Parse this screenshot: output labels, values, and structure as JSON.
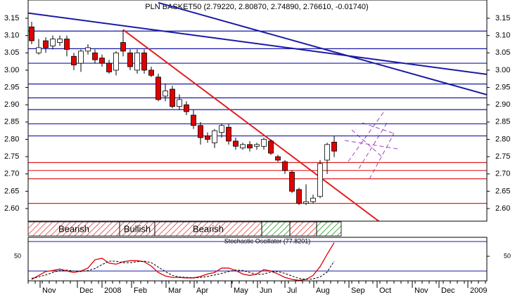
{
  "chart_data": [
    {
      "type": "candlestick",
      "title": "PLN BASKET50 (2.79220, 2.80870, 2.74890, 2.76610, -0.01740)",
      "x": [
        0.5,
        1.5,
        2.5,
        3.5,
        4.5,
        5.5,
        6.5,
        7.5,
        8.5,
        9.5,
        10.5,
        11.5,
        12.5,
        13.5,
        14.5,
        15.5,
        16.5,
        17.5,
        18.5,
        19.5,
        20.5,
        21.5,
        22.5,
        23.5,
        24.5,
        25.5,
        26.5,
        27.5,
        28.5,
        29.5,
        30.5,
        31.5,
        32.5,
        33.5,
        34.5,
        35.5,
        36.5,
        37.5,
        38.5,
        39.5,
        40.5,
        41.5,
        42.5,
        43.5
      ],
      "open": [
        3.125,
        3.05,
        3.085,
        3.07,
        3.08,
        3.09,
        3.04,
        3.02,
        3.055,
        3.05,
        3.035,
        3.02,
        3.0,
        3.08,
        3.05,
        3.0,
        3.05,
        3.0,
        2.98,
        2.925,
        2.945,
        2.895,
        2.9,
        2.87,
        2.84,
        2.81,
        2.79,
        2.82,
        2.835,
        2.795,
        2.775,
        2.785,
        2.78,
        2.78,
        2.795,
        2.75,
        2.735,
        2.705,
        2.655,
        2.615,
        2.62,
        2.635,
        2.74,
        2.792
      ],
      "high": [
        3.14,
        3.09,
        3.095,
        3.1,
        3.1,
        3.1,
        3.05,
        3.06,
        3.075,
        3.06,
        3.045,
        3.03,
        3.055,
        3.115,
        3.06,
        3.06,
        3.06,
        3.01,
        2.99,
        2.96,
        2.955,
        2.93,
        2.91,
        2.885,
        2.85,
        2.82,
        2.83,
        2.845,
        2.845,
        2.805,
        2.79,
        2.795,
        2.79,
        2.805,
        2.8,
        2.755,
        2.74,
        2.71,
        2.66,
        2.67,
        2.64,
        2.74,
        2.79,
        2.809
      ],
      "low": [
        3.075,
        3.045,
        3.05,
        3.06,
        3.07,
        3.04,
        3.0,
        2.995,
        3.045,
        3.02,
        3.01,
        2.99,
        2.985,
        3.04,
        3.0,
        2.99,
        2.99,
        2.98,
        2.91,
        2.91,
        2.89,
        2.885,
        2.87,
        2.83,
        2.785,
        2.79,
        2.775,
        2.805,
        2.785,
        2.77,
        2.77,
        2.765,
        2.77,
        2.77,
        2.755,
        2.735,
        2.7,
        2.645,
        2.61,
        2.61,
        2.615,
        2.63,
        2.7,
        2.749
      ],
      "close": [
        3.085,
        3.065,
        3.065,
        3.09,
        3.09,
        3.06,
        3.015,
        3.055,
        3.065,
        3.03,
        3.02,
        2.995,
        3.05,
        3.055,
        3.01,
        3.05,
        3.0,
        2.985,
        2.915,
        2.94,
        2.895,
        2.915,
        2.88,
        2.84,
        2.805,
        2.8,
        2.825,
        2.84,
        2.795,
        2.78,
        2.785,
        2.775,
        2.785,
        2.8,
        2.76,
        2.74,
        2.71,
        2.65,
        2.615,
        2.62,
        2.63,
        2.73,
        2.785,
        2.766
      ],
      "up_color": "#ffffff",
      "down_color": "#e00000",
      "xlim": [
        0,
        65.2
      ],
      "xticks": [
        {
          "value": 1.7,
          "label": "Nov"
        },
        {
          "value": 7,
          "label": "Dec"
        },
        {
          "value": 10.5,
          "label": "2008"
        },
        {
          "value": 14.7,
          "label": "Feb"
        },
        {
          "value": 19.6,
          "label": "Mar"
        },
        {
          "value": 23.6,
          "label": "Apr"
        },
        {
          "value": 28.9,
          "label": "May"
        },
        {
          "value": 32.6,
          "label": "Jun"
        },
        {
          "value": 36.5,
          "label": "Jul"
        },
        {
          "value": 40.6,
          "label": "Aug"
        },
        {
          "value": 45.6,
          "label": "Sep"
        },
        {
          "value": 49.6,
          "label": "Oct"
        },
        {
          "value": 54.6,
          "label": "Nov"
        },
        {
          "value": 58.4,
          "label": "Dec"
        },
        {
          "value": 62.5,
          "label": "2009"
        }
      ],
      "ylim": [
        2.5635,
        3.2028
      ],
      "yticks": [
        {
          "value": 2.6,
          "label": "2.60"
        },
        2.65,
        {
          "value": 2.7,
          "label": "2.70"
        },
        2.75,
        {
          "value": 2.8,
          "label": "2.80"
        },
        2.85,
        {
          "value": 2.9,
          "label": "2.90"
        },
        2.95,
        {
          "value": 3.0,
          "label": "3.00"
        },
        3.05,
        {
          "value": 3.1,
          "label": "3.10"
        },
        3.15
      ],
      "levels": [
        {
          "value": 3.113,
          "color": "#1a1aa6"
        },
        {
          "value": 3.062,
          "color": "#1a1aa6"
        },
        {
          "value": 3.02,
          "color": "#1a1aa6"
        },
        {
          "value": 2.96,
          "color": "#1a1aa6"
        },
        {
          "value": 2.92,
          "color": "#1a1aa6"
        },
        {
          "value": 2.886,
          "color": "#1a1aa6"
        },
        {
          "value": 2.845,
          "color": "#1a1aa6"
        },
        {
          "value": 2.81,
          "color": "#1a1aa6"
        },
        {
          "value": 2.733,
          "color": "#e02020"
        },
        {
          "value": 2.71,
          "color": "#e02020"
        },
        {
          "value": 2.686,
          "color": "#e02020"
        },
        {
          "value": 2.615,
          "color": "#e02020"
        }
      ],
      "trendlines": [
        {
          "x": [
            0,
            65.2
          ],
          "y": [
            3.165,
            2.988
          ],
          "color": "#1a1aa6"
        },
        {
          "x": [
            18.5,
            65.2
          ],
          "y": [
            3.195,
            2.929
          ],
          "color": "#1a1aa6"
        },
        {
          "x": [
            13.5,
            50
          ],
          "y": [
            3.117,
            2.561
          ],
          "color": "#e02020"
        }
      ],
      "bands": [
        {
          "label": "Bearish",
          "start": 0,
          "end": 13,
          "color": "#e03030"
        },
        {
          "label": "Bullish",
          "start": 13,
          "end": 18,
          "color": "#e03030"
        },
        {
          "label": "Bearish",
          "start": 18,
          "end": 33.2,
          "color": "#e03030"
        },
        {
          "label": null,
          "start": 33.2,
          "end": 37.2,
          "color": "#209020"
        },
        {
          "label": null,
          "start": 37.2,
          "end": 41,
          "color": "#e03030"
        },
        {
          "label": null,
          "start": 41,
          "end": 44.5,
          "color": "#209020"
        }
      ]
    },
    {
      "type": "line",
      "title": "Stochastic Oscillator (77.8201)",
      "ylim": [
        0,
        88.6
      ],
      "yticks": [
        50
      ],
      "levels": [
        {
          "value": 20,
          "color": "#1a1aa6"
        },
        {
          "value": 80,
          "color": "#1a1aa6"
        }
      ],
      "series": [
        {
          "color": "#e00000",
          "dash": false,
          "values": [
            3,
            11,
            19,
            21,
            24,
            20,
            17,
            20,
            26,
            43,
            46,
            36,
            34,
            39,
            41,
            41,
            39,
            30,
            17,
            10,
            7,
            7,
            6,
            6,
            9,
            14,
            17,
            26,
            26,
            21,
            14,
            11,
            14,
            23,
            20,
            14,
            7,
            3,
            1,
            3,
            11,
            29,
            54,
            77.8
          ]
        },
        {
          "color": "#000000",
          "dash": true,
          "values": [
            5,
            8,
            12,
            17,
            21,
            22,
            20,
            19,
            21,
            25,
            33,
            40,
            40,
            37,
            37,
            39,
            40,
            37,
            28,
            19,
            11,
            8,
            7,
            6,
            7,
            9,
            12,
            15,
            19,
            22,
            21,
            17,
            13,
            14,
            18,
            19,
            15,
            10,
            5,
            3,
            4,
            8,
            18,
            40
          ]
        }
      ]
    }
  ]
}
